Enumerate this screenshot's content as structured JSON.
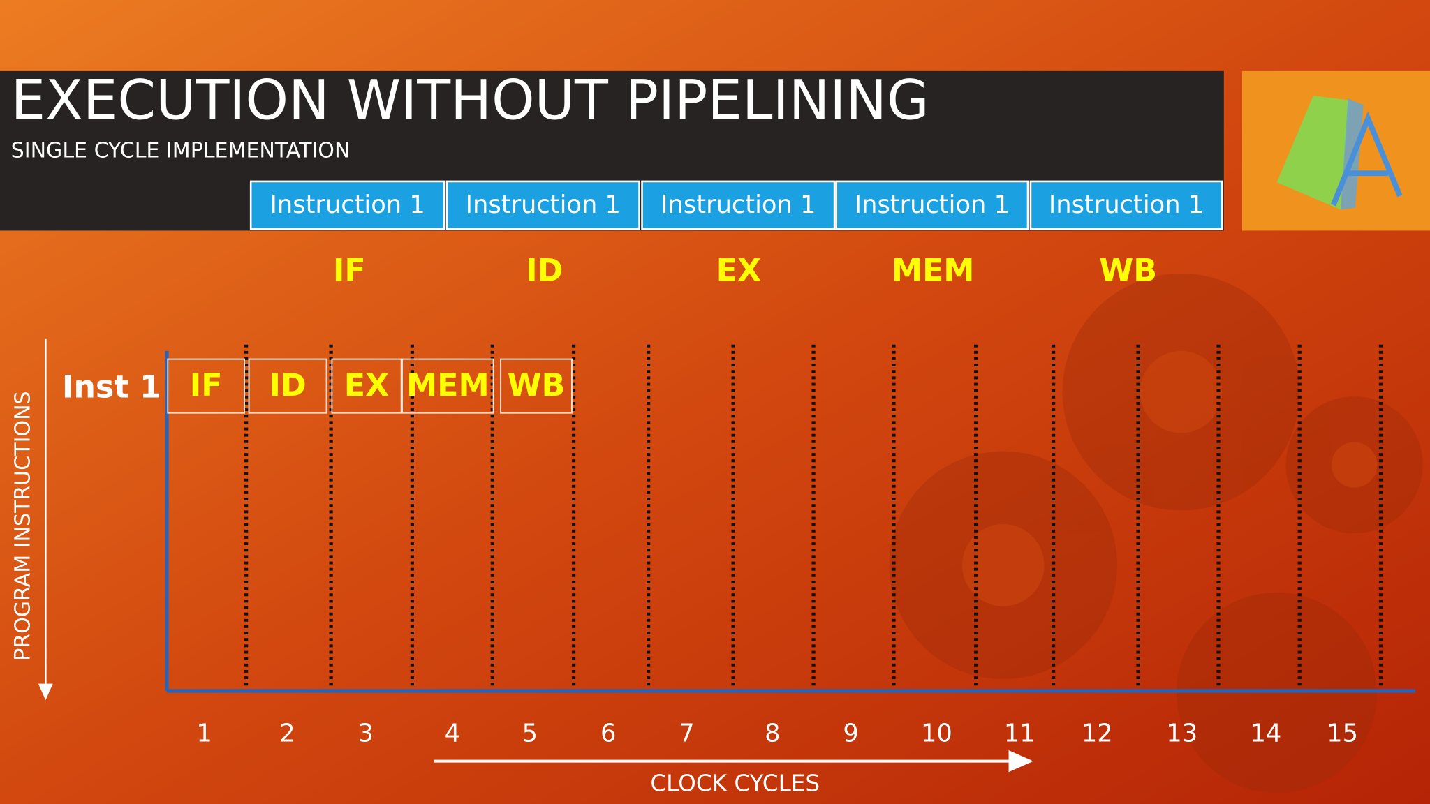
{
  "header": {
    "title": "EXECUTION WITHOUT PIPELINING",
    "subtitle": "SINGLE CYCLE IMPLEMENTATION"
  },
  "instruction_boxes": [
    "Instruction 1",
    "Instruction 1",
    "Instruction 1",
    "Instruction 1",
    "Instruction 1"
  ],
  "stage_labels": [
    "IF",
    "ID",
    "EX",
    "MEM",
    "WB"
  ],
  "diagram": {
    "y_axis_label": "PROGRAM INSTRUCTIONS",
    "row_label": "Inst 1",
    "cells": [
      "IF",
      "ID",
      "EX",
      "MEM",
      "WB"
    ],
    "clock_cycles": [
      "1",
      "2",
      "3",
      "4",
      "5",
      "6",
      "7",
      "8",
      "9",
      "10",
      "11",
      "12",
      "13",
      "14",
      "15"
    ],
    "x_axis_label": "CLOCK CYCLES"
  }
}
